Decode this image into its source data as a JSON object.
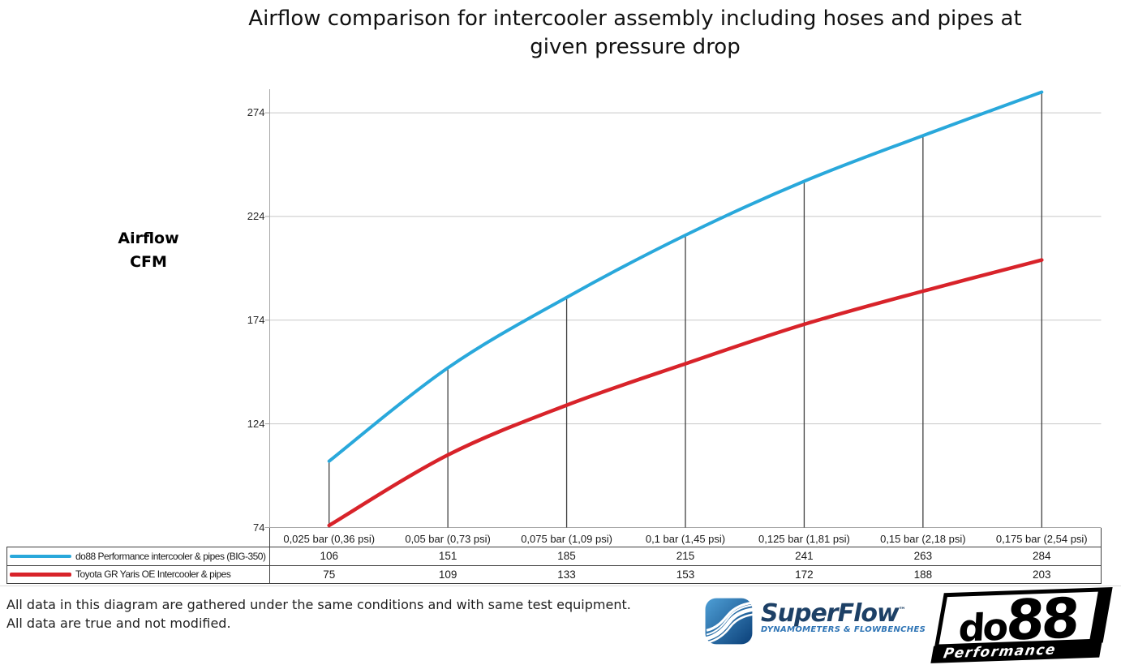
{
  "title_lines": [
    "Airflow comparison for intercooler assembly including hoses and pipes at",
    "given pressure drop"
  ],
  "axis": {
    "ylabel_line1": "Airflow",
    "ylabel_line2": "CFM"
  },
  "chart_data": {
    "type": "line",
    "title": "Airflow comparison for intercooler assembly including hoses and pipes at given pressure drop",
    "ylabel": "Airflow CFM",
    "xlabel": "",
    "categories": [
      "0,025 bar (0,36 psi)",
      "0,05 bar (0,73 psi)",
      "0,075 bar (1,09 psi)",
      "0,1 bar (1,45 psi)",
      "0,125 bar (1,81 psi)",
      "0,15 bar (2,18 psi)",
      "0,175 bar (2,54 psi)"
    ],
    "yticks": [
      74,
      124,
      174,
      224,
      274
    ],
    "ylim": [
      74,
      285
    ],
    "grid": true,
    "droplines": true,
    "legend_position": "table-left",
    "series": [
      {
        "name": "do88 Performance intercooler & pipes (BIG-350)",
        "color": "#29a8db",
        "values": [
          106,
          151,
          185,
          215,
          241,
          263,
          284
        ]
      },
      {
        "name": "Toyota GR Yaris OE Intercooler & pipes",
        "color": "#d8232a",
        "values": [
          75,
          109,
          133,
          153,
          172,
          188,
          203
        ]
      }
    ]
  },
  "footer": {
    "line1": "All data in this diagram are gathered under the same conditions and with same test equipment.",
    "line2": "All data are true and not modified."
  },
  "logos": {
    "superflow": {
      "name": "SuperFlow",
      "tm": "™",
      "tagline": "DYNAMOMETERS & FLOWBENCHES",
      "icon": "superflow-wave-icon",
      "brand_blue": "#2e74b5",
      "navy": "#1d4066"
    },
    "do88": {
      "name_prefix": "do",
      "name_suffix": "88",
      "tagline": "Performance"
    }
  },
  "colors": {
    "series_do88": "#29a8db",
    "series_toyota": "#d8232a",
    "gridline": "#c8c8c8",
    "axis": "#a6a6a6",
    "dropline": "#404040",
    "table_border": "#404040"
  }
}
